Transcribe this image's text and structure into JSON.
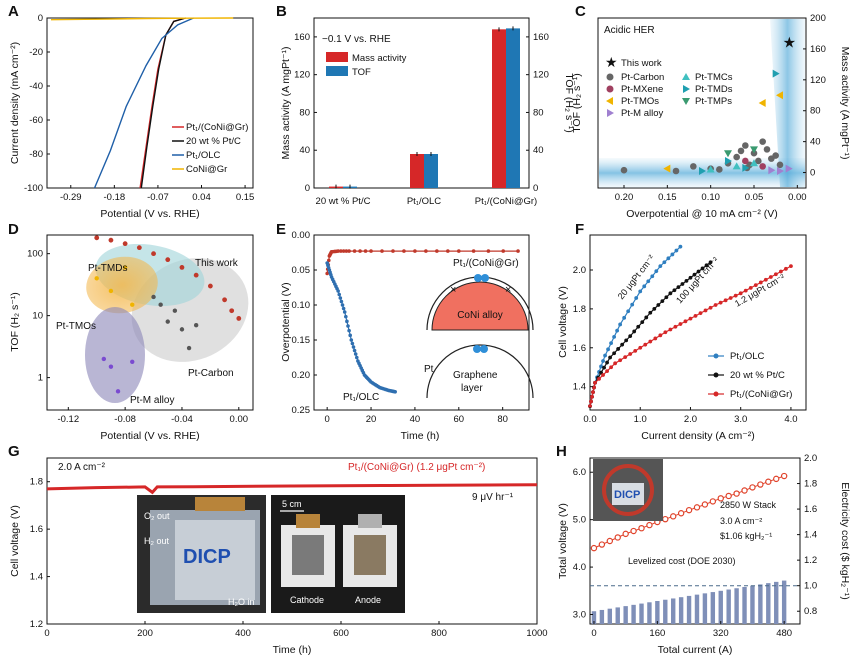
{
  "panels": {
    "A": {
      "label": "A",
      "xlabel": "Potential (V vs. RHE)",
      "ylabel": "Current density (mA cm⁻²)"
    },
    "B": {
      "label": "B",
      "xlabel": "",
      "ylabel_left": "Mass activity (A mgPt⁻¹)",
      "ylabel_right": "TOF (H₂ s⁻¹)",
      "condition": "−0.1 V vs. RHE"
    },
    "C": {
      "label": "C",
      "title": "Acidic HER",
      "xlabel": "Overpotential @ 10 mA cm⁻² (V)",
      "ylabel_left": "TOF (H₂ s⁻¹)",
      "ylabel_right": "Mass activity (A mgPt⁻¹)"
    },
    "D": {
      "label": "D",
      "xlabel": "Potential (V vs. RHE)",
      "ylabel": "TOF (H₂ s⁻¹)",
      "annotations": [
        "This work",
        "Pt-TMDs",
        "Pt-TMOs",
        "Pt-Carbon",
        "Pt-M alloy"
      ]
    },
    "E": {
      "label": "E",
      "xlabel": "Time (h)",
      "ylabel": "Overpotential (V)",
      "annotations": [
        "Pt₁/(CoNi@Gr)",
        "Pt₁/OLC",
        "CoNi alloy",
        "Pt",
        "Graphene",
        "layer"
      ]
    },
    "F": {
      "label": "F",
      "xlabel": "Current density (A cm⁻²)",
      "ylabel": "Cell voltage (V)",
      "annotations": [
        "20 μgPt cm⁻²",
        "100 μgPt cm⁻²",
        "1.2 μgPt cm⁻²"
      ]
    },
    "G": {
      "label": "G",
      "xlabel": "Time (h)",
      "ylabel": "Cell voltage (V)",
      "annotations": [
        "2.0 A cm⁻²",
        "Pt₁/(CoNi@Gr) (1.2 μgPt cm⁻²)",
        "9 μV hr⁻¹"
      ],
      "photo_labels": [
        "O₂ out",
        "H₂ out",
        "H₂O in",
        "DICP",
        "5 cm",
        "Cathode",
        "Anode"
      ]
    },
    "H": {
      "label": "H",
      "xlabel": "Total current (A)",
      "ylabel_left": "Total voltage (V)",
      "ylabel_right": "Electricity cost ($ kgH₂⁻¹)",
      "annotations": [
        "2850 W Stack",
        "3.0 A cm⁻²",
        "$1.06 kgH₂⁻¹",
        "Levelized cost (DOE 2030)"
      ],
      "photo_label": "DICP"
    }
  },
  "chart_data": [
    {
      "id": "A",
      "type": "line",
      "xlim": [
        -0.35,
        0.17
      ],
      "ylim": [
        -100,
        0
      ],
      "xticks": [
        "-0.29",
        "-0.18",
        "-0.07",
        "0.04",
        "0.15"
      ],
      "yticks": [
        "0",
        "-20",
        "-40",
        "-60",
        "-80",
        "-100"
      ],
      "series": [
        {
          "name": "Pt₁/(CoNi@Gr)",
          "color": "#d62728",
          "x": [
            0.0,
            -0.03,
            -0.05,
            -0.07,
            -0.085,
            -0.1,
            -0.115
          ],
          "y": [
            0,
            -2,
            -10,
            -30,
            -52,
            -76,
            -100
          ]
        },
        {
          "name": "20 wt % Pt/C",
          "color": "#111111",
          "x": [
            0.0,
            -0.03,
            -0.05,
            -0.068,
            -0.083,
            -0.098,
            -0.112
          ],
          "y": [
            0,
            -2,
            -10,
            -30,
            -52,
            -76,
            -100
          ]
        },
        {
          "name": "Pt₁/OLC",
          "color": "#1f5fa8",
          "x": [
            0.02,
            -0.02,
            -0.06,
            -0.1,
            -0.15,
            -0.19,
            -0.23
          ],
          "y": [
            0,
            -4,
            -12,
            -28,
            -52,
            -78,
            -100
          ]
        },
        {
          "name": "CoNi@Gr",
          "color": "#f0b400",
          "x": [
            -0.34,
            -0.2,
            -0.1,
            0.0,
            0.12
          ],
          "y": [
            -1,
            -0.6,
            -0.3,
            -0.1,
            0
          ]
        }
      ]
    },
    {
      "id": "B",
      "type": "bar",
      "categories": [
        "20 wt % Pt/C",
        "Pt₁/OLC",
        "Pt₁/(CoNi@Gr)"
      ],
      "ylim": [
        0,
        180
      ],
      "ylim_right": [
        0,
        180
      ],
      "yticks": [
        "0",
        "40",
        "80",
        "120",
        "160"
      ],
      "yticks_right": [
        "0",
        "40",
        "80",
        "120",
        "160"
      ],
      "series": [
        {
          "name": "Mass activity",
          "color": "#d62728",
          "values": [
            1.5,
            36,
            168
          ]
        },
        {
          "name": "TOF",
          "color": "#1f77b4",
          "values": [
            1.5,
            36,
            169
          ]
        }
      ]
    },
    {
      "id": "C",
      "type": "scatter",
      "xlim": [
        0.23,
        -0.01
      ],
      "ylim_right": [
        -20,
        200
      ],
      "xticks": [
        "0.20",
        "0.15",
        "0.10",
        "0.05",
        "0.00"
      ],
      "yticks_right": [
        "0",
        "40",
        "80",
        "120",
        "160",
        "200"
      ],
      "legend": [
        "This work",
        "Pt-Carbon",
        "Pt-MXene",
        "Pt-TMOs",
        "Pt-M alloy",
        "Pt-TMCs",
        "Pt-TMDs",
        "Pt-TMPs"
      ],
      "series": [
        {
          "name": "This work",
          "color": "#c0392b",
          "marker": "star",
          "x": [
            0.01
          ],
          "y": [
            168
          ]
        },
        {
          "name": "Pt-Carbon",
          "color": "#666666",
          "marker": "circle",
          "x": [
            0.2,
            0.14,
            0.12,
            0.1,
            0.08,
            0.07,
            0.06,
            0.055,
            0.05,
            0.045,
            0.04,
            0.035,
            0.03,
            0.025,
            0.02,
            0.09,
            0.065,
            0.058
          ],
          "y": [
            3,
            2,
            8,
            5,
            12,
            20,
            35,
            10,
            25,
            15,
            40,
            30,
            18,
            22,
            10,
            4,
            28,
            6
          ]
        },
        {
          "name": "Pt-MXene",
          "color": "#a04060",
          "marker": "circle",
          "x": [
            0.06,
            0.04
          ],
          "y": [
            15,
            8
          ]
        },
        {
          "name": "Pt-TMOs",
          "color": "#f0b400",
          "marker": "triangle-left",
          "x": [
            0.15,
            0.04,
            0.02
          ],
          "y": [
            5,
            90,
            100
          ]
        },
        {
          "name": "Pt-M alloy",
          "color": "#a080d0",
          "marker": "triangle-right",
          "x": [
            0.03,
            0.02,
            0.01
          ],
          "y": [
            3,
            2,
            5
          ]
        },
        {
          "name": "Pt-TMCs",
          "color": "#40c0c0",
          "marker": "triangle-up",
          "x": [
            0.1,
            0.07,
            0.05
          ],
          "y": [
            4,
            8,
            12
          ]
        },
        {
          "name": "Pt-TMDs",
          "color": "#1f9fb0",
          "marker": "triangle-right",
          "x": [
            0.11,
            0.08,
            0.06,
            0.025
          ],
          "y": [
            2,
            15,
            6,
            128
          ]
        },
        {
          "name": "Pt-TMPs",
          "color": "#3a9a70",
          "marker": "triangle-down",
          "x": [
            0.08,
            0.05
          ],
          "y": [
            25,
            30
          ]
        }
      ]
    },
    {
      "id": "D",
      "type": "scatter",
      "xlim": [
        -0.135,
        0.01
      ],
      "ylim_log": [
        0.3,
        200
      ],
      "xticks": [
        "-0.12",
        "-0.08",
        "-0.04",
        "0.00"
      ],
      "yticks": [
        "1",
        "10",
        "100"
      ],
      "series": [
        {
          "name": "This work",
          "color": "#c0392b",
          "x": [
            -0.1,
            -0.09,
            -0.08,
            -0.07,
            -0.06,
            -0.05,
            -0.04,
            -0.03,
            -0.02,
            -0.01,
            -0.005,
            0.0
          ],
          "y": [
            180,
            165,
            145,
            125,
            100,
            80,
            60,
            45,
            30,
            18,
            12,
            9
          ]
        },
        {
          "name": "Pt-Carbon",
          "color": "#555555",
          "x": [
            -0.06,
            -0.05,
            -0.045,
            -0.04,
            -0.035,
            -0.03,
            -0.055
          ],
          "y": [
            20,
            8,
            12,
            6,
            3,
            7,
            15
          ]
        },
        {
          "name": "Pt-TMDs",
          "color": "#f0b400",
          "x": [
            -0.1,
            -0.09,
            -0.08,
            -0.075
          ],
          "y": [
            40,
            25,
            60,
            15
          ]
        },
        {
          "name": "Pt-M alloy",
          "color": "#7a4bd0",
          "x": [
            -0.095,
            -0.09,
            -0.085,
            -0.075
          ],
          "y": [
            2,
            1.5,
            0.6,
            1.8
          ]
        }
      ]
    },
    {
      "id": "E",
      "type": "line",
      "xlim": [
        -6,
        92
      ],
      "ylim": [
        0.25,
        0.0
      ],
      "xticks": [
        "0",
        "20",
        "40",
        "60",
        "80"
      ],
      "yticks": [
        "0.00",
        "0.05",
        "0.10",
        "0.15",
        "0.20",
        "0.25"
      ],
      "series": [
        {
          "name": "Pt₁/(CoNi@Gr)",
          "color": "#c0392b",
          "x": [
            0,
            1,
            2,
            5,
            10,
            20,
            40,
            60,
            87
          ],
          "y": [
            0.055,
            0.03,
            0.024,
            0.023,
            0.023,
            0.023,
            0.023,
            0.023,
            0.023
          ]
        },
        {
          "name": "Pt₁/OLC",
          "color": "#2f6fb0",
          "x": [
            0,
            2,
            5,
            8,
            11,
            14,
            17,
            20,
            24,
            28,
            31
          ],
          "y": [
            0.04,
            0.06,
            0.08,
            0.11,
            0.15,
            0.18,
            0.2,
            0.21,
            0.218,
            0.222,
            0.224
          ]
        }
      ]
    },
    {
      "id": "F",
      "type": "line",
      "xlim": [
        0,
        4.3
      ],
      "ylim": [
        1.28,
        2.18
      ],
      "xticks": [
        "0.0",
        "1.0",
        "2.0",
        "3.0",
        "4.0"
      ],
      "yticks": [
        "1.4",
        "1.6",
        "1.8",
        "2.0"
      ],
      "series": [
        {
          "name": "Pt₁/OLC",
          "color": "#2f7fc0",
          "x": [
            0,
            0.1,
            0.3,
            0.6,
            1.0,
            1.4,
            1.8
          ],
          "y": [
            1.3,
            1.42,
            1.56,
            1.72,
            1.89,
            2.02,
            2.12
          ]
        },
        {
          "name": "20 wt % Pt/C",
          "color": "#111111",
          "x": [
            0,
            0.1,
            0.4,
            0.8,
            1.2,
            1.6,
            2.0,
            2.4
          ],
          "y": [
            1.3,
            1.42,
            1.55,
            1.66,
            1.78,
            1.88,
            1.96,
            2.04
          ]
        },
        {
          "name": "Pt₁/(CoNi@Gr)",
          "color": "#d62728",
          "x": [
            0,
            0.1,
            0.5,
            1.0,
            1.5,
            2.0,
            2.5,
            3.0,
            3.5,
            4.0
          ],
          "y": [
            1.3,
            1.42,
            1.52,
            1.6,
            1.68,
            1.75,
            1.82,
            1.88,
            1.95,
            2.02
          ]
        }
      ]
    },
    {
      "id": "G",
      "type": "line",
      "xlim": [
        0,
        1000
      ],
      "ylim": [
        1.2,
        1.9
      ],
      "xticks": [
        "0",
        "200",
        "400",
        "600",
        "800",
        "1000"
      ],
      "yticks": [
        "1.2",
        "1.4",
        "1.6",
        "1.8"
      ],
      "series": [
        {
          "name": "Pt₁/(CoNi@Gr)",
          "color": "#d62728",
          "x": [
            0,
            100,
            200,
            215,
            225,
            300,
            500,
            700,
            900,
            1000
          ],
          "y": [
            1.77,
            1.775,
            1.778,
            1.755,
            1.778,
            1.779,
            1.782,
            1.784,
            1.786,
            1.787
          ]
        }
      ]
    },
    {
      "id": "H",
      "type": "scatter",
      "xlim": [
        -10,
        520
      ],
      "ylim": [
        2.8,
        6.3
      ],
      "ylim_right": [
        0.7,
        2.0
      ],
      "xticks": [
        "0",
        "160",
        "320",
        "480"
      ],
      "yticks": [
        "3.0",
        "4.0",
        "5.0",
        "6.0"
      ],
      "yticks_right": [
        "0.8",
        "1.0",
        "1.2",
        "1.4",
        "1.6",
        "1.8",
        "2.0"
      ],
      "levelized_cost": 1.0,
      "series": [
        {
          "name": "Total voltage",
          "color": "#e0432b",
          "x": [
            0,
            40,
            80,
            120,
            160,
            200,
            240,
            280,
            320,
            360,
            400,
            440,
            480
          ],
          "y": [
            4.4,
            4.55,
            4.7,
            4.82,
            4.95,
            5.07,
            5.2,
            5.32,
            5.45,
            5.55,
            5.68,
            5.8,
            5.92
          ]
        },
        {
          "name": "Electricity cost",
          "color": "#7f8fb8",
          "x": [
            0,
            40,
            80,
            120,
            160,
            200,
            240,
            280,
            320,
            360,
            400,
            440,
            480
          ],
          "y": [
            0.8,
            0.81,
            0.83,
            0.85,
            0.87,
            0.89,
            0.91,
            0.93,
            0.95,
            0.97,
            0.99,
            1.01,
            1.04
          ]
        }
      ]
    }
  ]
}
